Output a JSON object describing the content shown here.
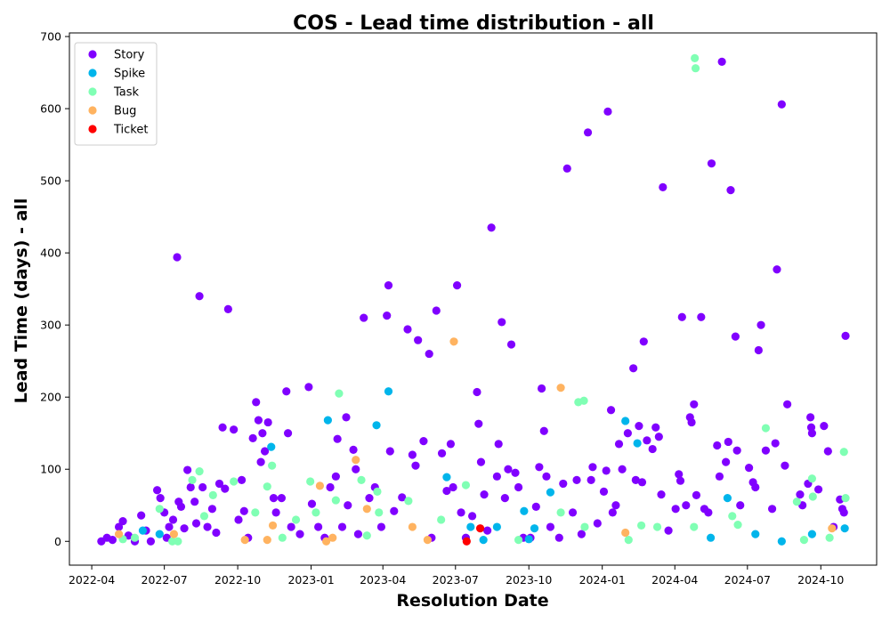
{
  "chart_data": {
    "type": "scatter",
    "title": "COS - Lead time distribution - all",
    "xlabel": "Resolution Date",
    "ylabel": "Lead Time (days) - all",
    "xlim": [
      "2022-03-04",
      "2024-12-10"
    ],
    "ylim": [
      -33,
      705
    ],
    "x_ticks": [
      "2022-04",
      "2022-07",
      "2022-10",
      "2023-01",
      "2023-04",
      "2023-07",
      "2023-10",
      "2024-01",
      "2024-04",
      "2024-07",
      "2024-10"
    ],
    "y_ticks": [
      0,
      100,
      200,
      300,
      400,
      500,
      600,
      700
    ],
    "grid": false,
    "legend_position": "upper-left",
    "series": [
      {
        "name": "Story",
        "color": "#8000ff",
        "points": [
          [
            "2022-04-13",
            0
          ],
          [
            "2022-04-20",
            5
          ],
          [
            "2022-04-27",
            2
          ],
          [
            "2022-05-05",
            20
          ],
          [
            "2022-05-10",
            28
          ],
          [
            "2022-05-17",
            8
          ],
          [
            "2022-05-25",
            0
          ],
          [
            "2022-06-02",
            36
          ],
          [
            "2022-06-08",
            15
          ],
          [
            "2022-06-14",
            0
          ],
          [
            "2022-06-22",
            71
          ],
          [
            "2022-06-26",
            60
          ],
          [
            "2022-07-01",
            40
          ],
          [
            "2022-07-04",
            5
          ],
          [
            "2022-07-07",
            20
          ],
          [
            "2022-07-12",
            30
          ],
          [
            "2022-07-17",
            394
          ],
          [
            "2022-07-19",
            55
          ],
          [
            "2022-07-22",
            48
          ],
          [
            "2022-07-26",
            18
          ],
          [
            "2022-07-30",
            99
          ],
          [
            "2022-08-03",
            75
          ],
          [
            "2022-08-08",
            55
          ],
          [
            "2022-08-10",
            25
          ],
          [
            "2022-08-14",
            340
          ],
          [
            "2022-08-18",
            75
          ],
          [
            "2022-08-24",
            20
          ],
          [
            "2022-08-30",
            45
          ],
          [
            "2022-09-04",
            12
          ],
          [
            "2022-09-08",
            80
          ],
          [
            "2022-09-12",
            158
          ],
          [
            "2022-09-15",
            73
          ],
          [
            "2022-09-19",
            322
          ],
          [
            "2022-09-26",
            155
          ],
          [
            "2022-10-02",
            30
          ],
          [
            "2022-10-06",
            85
          ],
          [
            "2022-10-09",
            42
          ],
          [
            "2022-10-14",
            5
          ],
          [
            "2022-10-20",
            143
          ],
          [
            "2022-10-24",
            193
          ],
          [
            "2022-10-27",
            168
          ],
          [
            "2022-10-30",
            110
          ],
          [
            "2022-11-01",
            150
          ],
          [
            "2022-11-04",
            125
          ],
          [
            "2022-11-08",
            165
          ],
          [
            "2022-11-15",
            60
          ],
          [
            "2022-11-18",
            40
          ],
          [
            "2022-11-25",
            60
          ],
          [
            "2022-12-01",
            208
          ],
          [
            "2022-12-03",
            150
          ],
          [
            "2022-12-07",
            20
          ],
          [
            "2022-12-18",
            10
          ],
          [
            "2022-12-29",
            214
          ],
          [
            "2023-01-02",
            52
          ],
          [
            "2023-01-10",
            20
          ],
          [
            "2023-01-18",
            5
          ],
          [
            "2023-01-25",
            75
          ],
          [
            "2023-02-01",
            90
          ],
          [
            "2023-02-03",
            142
          ],
          [
            "2023-02-09",
            20
          ],
          [
            "2023-02-14",
            172
          ],
          [
            "2023-02-16",
            50
          ],
          [
            "2023-02-23",
            127
          ],
          [
            "2023-02-26",
            100
          ],
          [
            "2023-03-01",
            10
          ],
          [
            "2023-03-08",
            310
          ],
          [
            "2023-03-15",
            60
          ],
          [
            "2023-03-22",
            75
          ],
          [
            "2023-03-30",
            20
          ],
          [
            "2023-04-06",
            313
          ],
          [
            "2023-04-08",
            355
          ],
          [
            "2023-04-10",
            125
          ],
          [
            "2023-04-15",
            42
          ],
          [
            "2023-04-25",
            61
          ],
          [
            "2023-05-02",
            294
          ],
          [
            "2023-05-08",
            120
          ],
          [
            "2023-05-12",
            105
          ],
          [
            "2023-05-15",
            279
          ],
          [
            "2023-05-22",
            139
          ],
          [
            "2023-05-29",
            260
          ],
          [
            "2023-06-01",
            5
          ],
          [
            "2023-06-07",
            320
          ],
          [
            "2023-06-14",
            122
          ],
          [
            "2023-06-20",
            70
          ],
          [
            "2023-06-25",
            135
          ],
          [
            "2023-06-28",
            75
          ],
          [
            "2023-07-03",
            355
          ],
          [
            "2023-07-08",
            40
          ],
          [
            "2023-07-14",
            5
          ],
          [
            "2023-07-22",
            35
          ],
          [
            "2023-07-28",
            207
          ],
          [
            "2023-07-30",
            163
          ],
          [
            "2023-08-02",
            110
          ],
          [
            "2023-08-06",
            65
          ],
          [
            "2023-08-10",
            15
          ],
          [
            "2023-08-15",
            435
          ],
          [
            "2023-08-22",
            90
          ],
          [
            "2023-08-24",
            135
          ],
          [
            "2023-08-28",
            304
          ],
          [
            "2023-09-01",
            60
          ],
          [
            "2023-09-05",
            100
          ],
          [
            "2023-09-09",
            273
          ],
          [
            "2023-09-14",
            95
          ],
          [
            "2023-09-18",
            75
          ],
          [
            "2023-09-24",
            5
          ],
          [
            "2023-10-03",
            5
          ],
          [
            "2023-10-10",
            48
          ],
          [
            "2023-10-14",
            103
          ],
          [
            "2023-10-17",
            212
          ],
          [
            "2023-10-20",
            153
          ],
          [
            "2023-10-23",
            90
          ],
          [
            "2023-10-28",
            20
          ],
          [
            "2023-11-08",
            5
          ],
          [
            "2023-11-13",
            80
          ],
          [
            "2023-11-18",
            517
          ],
          [
            "2023-11-25",
            40
          ],
          [
            "2023-11-30",
            85
          ],
          [
            "2023-12-06",
            10
          ],
          [
            "2023-12-14",
            567
          ],
          [
            "2023-12-18",
            85
          ],
          [
            "2023-12-20",
            103
          ],
          [
            "2023-12-26",
            25
          ],
          [
            "2024-01-03",
            69
          ],
          [
            "2024-01-06",
            98
          ],
          [
            "2024-01-08",
            596
          ],
          [
            "2024-01-12",
            182
          ],
          [
            "2024-01-14",
            40
          ],
          [
            "2024-01-18",
            50
          ],
          [
            "2024-01-22",
            135
          ],
          [
            "2024-01-26",
            100
          ],
          [
            "2024-02-02",
            150
          ],
          [
            "2024-02-09",
            240
          ],
          [
            "2024-02-12",
            85
          ],
          [
            "2024-02-16",
            160
          ],
          [
            "2024-02-20",
            82
          ],
          [
            "2024-02-22",
            277
          ],
          [
            "2024-02-26",
            140
          ],
          [
            "2024-03-04",
            128
          ],
          [
            "2024-03-08",
            158
          ],
          [
            "2024-03-12",
            145
          ],
          [
            "2024-03-15",
            65
          ],
          [
            "2024-03-17",
            491
          ],
          [
            "2024-03-24",
            15
          ],
          [
            "2024-04-02",
            45
          ],
          [
            "2024-04-06",
            93
          ],
          [
            "2024-04-08",
            84
          ],
          [
            "2024-04-10",
            311
          ],
          [
            "2024-04-15",
            50
          ],
          [
            "2024-04-20",
            172
          ],
          [
            "2024-04-22",
            165
          ],
          [
            "2024-04-25",
            190
          ],
          [
            "2024-04-28",
            64
          ],
          [
            "2024-05-04",
            311
          ],
          [
            "2024-05-08",
            45
          ],
          [
            "2024-05-13",
            40
          ],
          [
            "2024-05-17",
            524
          ],
          [
            "2024-05-24",
            133
          ],
          [
            "2024-05-27",
            90
          ],
          [
            "2024-05-30",
            665
          ],
          [
            "2024-06-04",
            110
          ],
          [
            "2024-06-07",
            138
          ],
          [
            "2024-06-10",
            487
          ],
          [
            "2024-06-16",
            284
          ],
          [
            "2024-06-18",
            126
          ],
          [
            "2024-06-22",
            50
          ],
          [
            "2024-07-03",
            102
          ],
          [
            "2024-07-08",
            82
          ],
          [
            "2024-07-11",
            75
          ],
          [
            "2024-07-15",
            265
          ],
          [
            "2024-07-18",
            300
          ],
          [
            "2024-07-24",
            126
          ],
          [
            "2024-08-01",
            45
          ],
          [
            "2024-08-05",
            136
          ],
          [
            "2024-08-07",
            377
          ],
          [
            "2024-08-13",
            606
          ],
          [
            "2024-08-17",
            105
          ],
          [
            "2024-08-20",
            190
          ],
          [
            "2024-09-05",
            65
          ],
          [
            "2024-09-08",
            50
          ],
          [
            "2024-09-15",
            80
          ],
          [
            "2024-09-18",
            172
          ],
          [
            "2024-09-19",
            158
          ],
          [
            "2024-09-20",
            150
          ],
          [
            "2024-09-28",
            72
          ],
          [
            "2024-10-05",
            160
          ],
          [
            "2024-10-10",
            125
          ],
          [
            "2024-10-17",
            20
          ],
          [
            "2024-10-25",
            58
          ],
          [
            "2024-10-28",
            45
          ],
          [
            "2024-10-30",
            40
          ],
          [
            "2024-11-01",
            285
          ]
        ]
      },
      {
        "name": "Spike",
        "color": "#00b5eb",
        "points": [
          [
            "2022-06-04",
            15
          ],
          [
            "2022-06-25",
            10
          ],
          [
            "2022-11-12",
            131
          ],
          [
            "2023-01-22",
            168
          ],
          [
            "2023-03-24",
            161
          ],
          [
            "2023-04-08",
            208
          ],
          [
            "2023-06-20",
            89
          ],
          [
            "2023-07-20",
            20
          ],
          [
            "2023-08-05",
            2
          ],
          [
            "2023-08-22",
            20
          ],
          [
            "2023-09-25",
            42
          ],
          [
            "2023-10-01",
            3
          ],
          [
            "2023-10-08",
            18
          ],
          [
            "2023-10-28",
            68
          ],
          [
            "2024-01-30",
            167
          ],
          [
            "2024-02-14",
            136
          ],
          [
            "2024-05-16",
            5
          ],
          [
            "2024-06-06",
            60
          ],
          [
            "2024-07-11",
            10
          ],
          [
            "2024-08-13",
            0
          ],
          [
            "2024-09-20",
            10
          ],
          [
            "2024-10-31",
            18
          ]
        ]
      },
      {
        "name": "Task",
        "color": "#80ffb4",
        "points": [
          [
            "2022-05-10",
            3
          ],
          [
            "2022-05-25",
            5
          ],
          [
            "2022-06-25",
            45
          ],
          [
            "2022-07-11",
            0
          ],
          [
            "2022-07-18",
            0
          ],
          [
            "2022-08-05",
            85
          ],
          [
            "2022-08-14",
            97
          ],
          [
            "2022-08-20",
            35
          ],
          [
            "2022-08-31",
            64
          ],
          [
            "2022-09-26",
            83
          ],
          [
            "2022-10-23",
            40
          ],
          [
            "2022-11-07",
            76
          ],
          [
            "2022-11-13",
            105
          ],
          [
            "2022-11-26",
            5
          ],
          [
            "2022-12-13",
            30
          ],
          [
            "2022-12-31",
            83
          ],
          [
            "2023-01-07",
            40
          ],
          [
            "2023-02-01",
            57
          ],
          [
            "2023-02-05",
            205
          ],
          [
            "2023-03-05",
            85
          ],
          [
            "2023-03-12",
            8
          ],
          [
            "2023-03-25",
            69
          ],
          [
            "2023-03-27",
            40
          ],
          [
            "2023-05-03",
            56
          ],
          [
            "2023-06-13",
            30
          ],
          [
            "2023-07-14",
            78
          ],
          [
            "2023-09-18",
            2
          ],
          [
            "2023-11-10",
            40
          ],
          [
            "2023-12-02",
            193
          ],
          [
            "2023-12-09",
            195
          ],
          [
            "2023-12-10",
            20
          ],
          [
            "2024-02-03",
            2
          ],
          [
            "2024-02-19",
            22
          ],
          [
            "2024-03-10",
            20
          ],
          [
            "2024-04-25",
            20
          ],
          [
            "2024-04-26",
            670
          ],
          [
            "2024-04-27",
            656
          ],
          [
            "2024-06-12",
            35
          ],
          [
            "2024-06-19",
            23
          ],
          [
            "2024-07-24",
            157
          ],
          [
            "2024-09-01",
            55
          ],
          [
            "2024-09-10",
            2
          ],
          [
            "2024-09-20",
            87
          ],
          [
            "2024-09-21",
            62
          ],
          [
            "2024-10-12",
            5
          ],
          [
            "2024-10-30",
            124
          ],
          [
            "2024-11-01",
            60
          ]
        ]
      },
      {
        "name": "Bug",
        "color": "#ffb360",
        "points": [
          [
            "2022-05-05",
            10
          ],
          [
            "2022-07-13",
            10
          ],
          [
            "2022-10-10",
            2
          ],
          [
            "2022-11-07",
            2
          ],
          [
            "2022-11-14",
            22
          ],
          [
            "2023-01-12",
            77
          ],
          [
            "2023-01-20",
            0
          ],
          [
            "2023-01-28",
            5
          ],
          [
            "2023-02-26",
            113
          ],
          [
            "2023-03-12",
            45
          ],
          [
            "2023-05-08",
            20
          ],
          [
            "2023-05-27",
            2
          ],
          [
            "2023-06-29",
            277
          ],
          [
            "2023-11-10",
            213
          ],
          [
            "2024-01-30",
            12
          ],
          [
            "2024-10-15",
            18
          ]
        ]
      },
      {
        "name": "Ticket",
        "color": "#ff0000",
        "points": [
          [
            "2023-07-15",
            0
          ],
          [
            "2023-08-01",
            18
          ]
        ]
      }
    ]
  }
}
